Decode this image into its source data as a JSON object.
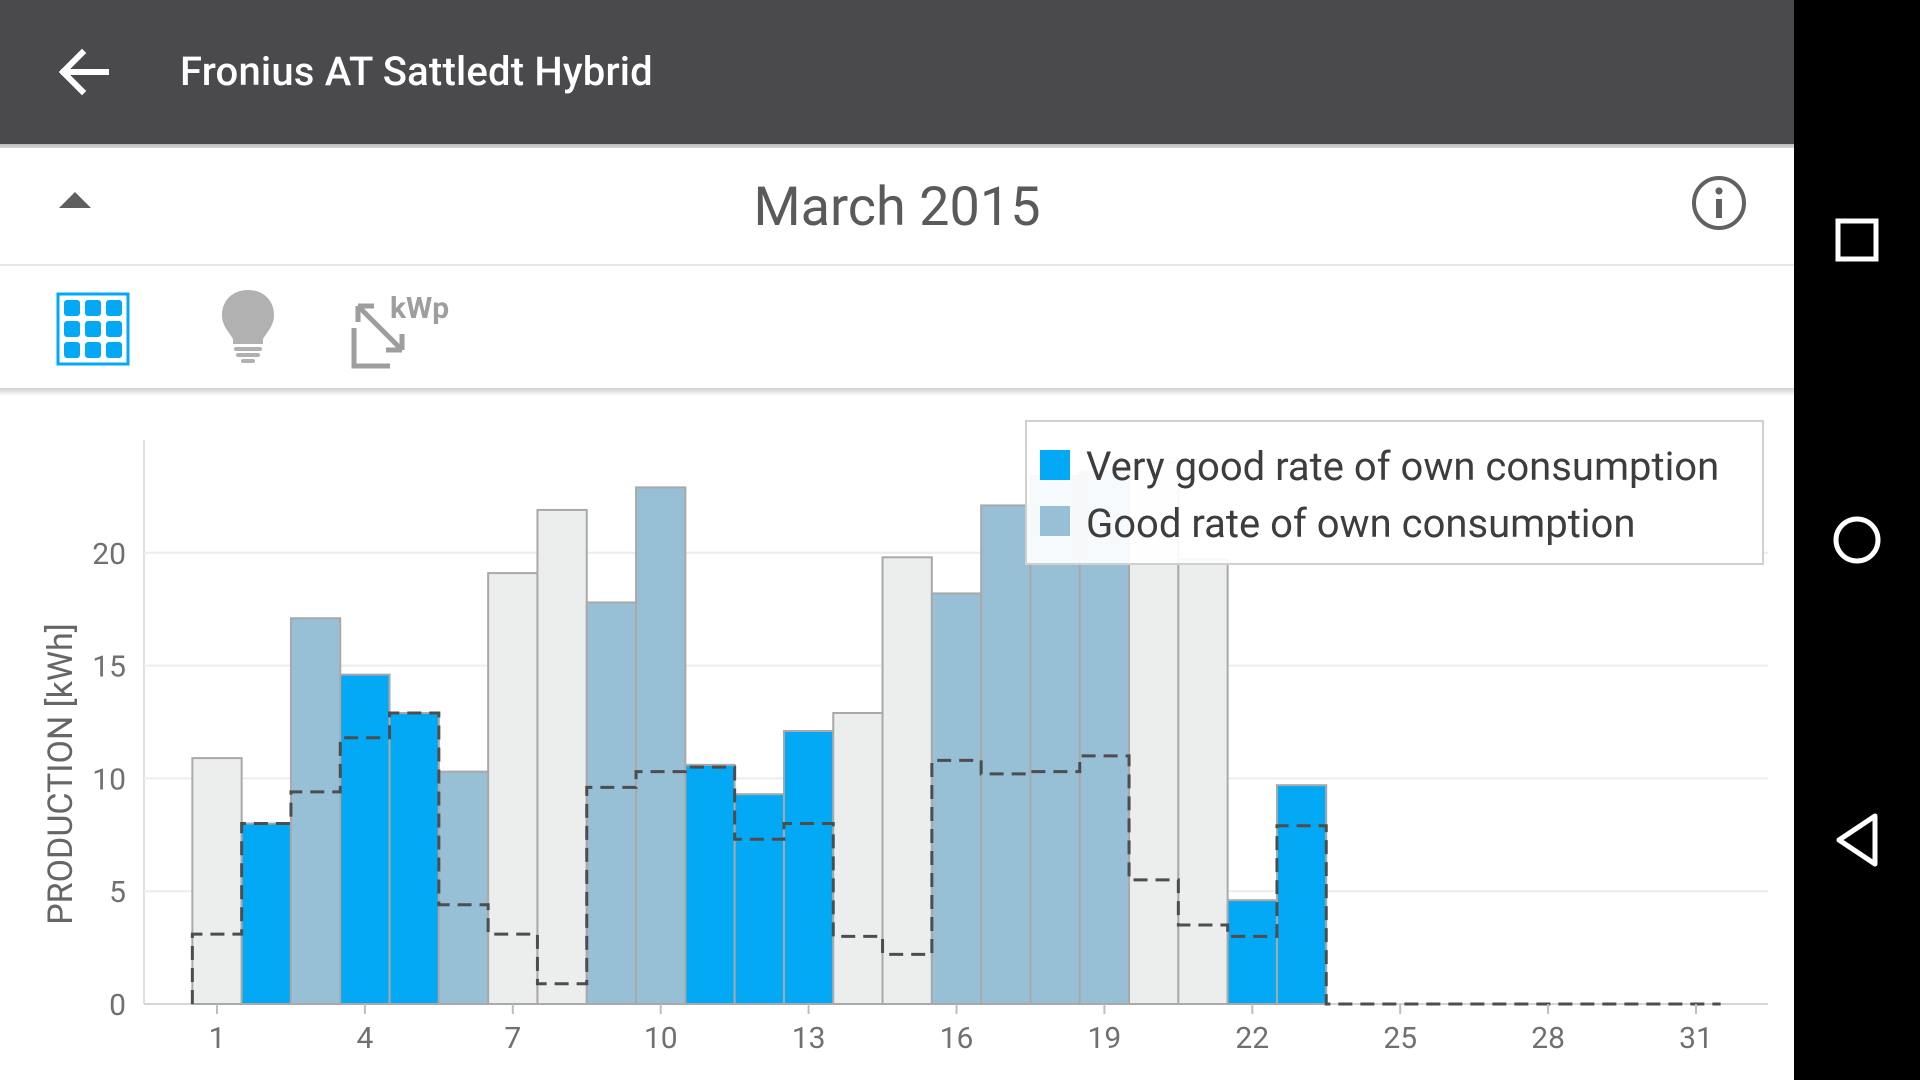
{
  "app": {
    "title": "Fronius AT Sattledt Hybrid"
  },
  "period": {
    "label": "March 2015"
  },
  "toolbar": {
    "icons": [
      "solar-panel-icon",
      "lightbulb-icon",
      "kwp-scale-icon"
    ],
    "kwp_label": "kWp"
  },
  "colors": {
    "very_good": "#03a9f4",
    "good": "#97bfd6",
    "none": "#eceded",
    "bar_border": "#a9a9a9",
    "dashed_line": "#4d4d4d"
  },
  "chart_data": {
    "type": "bar",
    "ylabel": "PRODUCTION [kWh]",
    "ylim": [
      0,
      25
    ],
    "yticks": [
      0,
      5,
      10,
      15,
      20
    ],
    "xticks": [
      1,
      4,
      7,
      10,
      13,
      16,
      19,
      22,
      25,
      28,
      31
    ],
    "legend_position": "top-right",
    "legend": [
      {
        "label": "Very good rate of own consumption",
        "color": "#03a9f4"
      },
      {
        "label": "Good rate of own consumption",
        "color": "#97bfd6"
      }
    ],
    "days": [
      1,
      2,
      3,
      4,
      5,
      6,
      7,
      8,
      9,
      10,
      11,
      12,
      13,
      14,
      15,
      16,
      17,
      18,
      19,
      20,
      21,
      22,
      23,
      24,
      25,
      26,
      27,
      28,
      29,
      30,
      31
    ],
    "production": [
      10.9,
      8.0,
      17.1,
      14.6,
      12.9,
      10.3,
      19.1,
      21.9,
      17.8,
      22.9,
      10.6,
      9.3,
      12.1,
      12.9,
      19.8,
      18.2,
      22.1,
      23.4,
      23.6,
      24.0,
      19.7,
      4.6,
      9.7,
      0,
      0,
      0,
      0,
      0,
      0,
      0,
      0
    ],
    "rating": [
      "none",
      "very_good",
      "good",
      "very_good",
      "very_good",
      "good",
      "none",
      "none",
      "good",
      "good",
      "very_good",
      "very_good",
      "very_good",
      "none",
      "none",
      "good",
      "good",
      "good",
      "good",
      "none",
      "none",
      "very_good",
      "very_good",
      "none",
      "none",
      "none",
      "none",
      "none",
      "none",
      "none",
      "none"
    ],
    "own_consumption": [
      3.1,
      8.0,
      9.4,
      11.8,
      12.9,
      4.4,
      3.1,
      0.9,
      9.6,
      10.3,
      10.5,
      7.3,
      8.0,
      3.0,
      2.2,
      10.8,
      10.2,
      10.3,
      11.0,
      5.5,
      3.5,
      3.0,
      7.9,
      0,
      0,
      0,
      0,
      0,
      0,
      0,
      0
    ]
  }
}
